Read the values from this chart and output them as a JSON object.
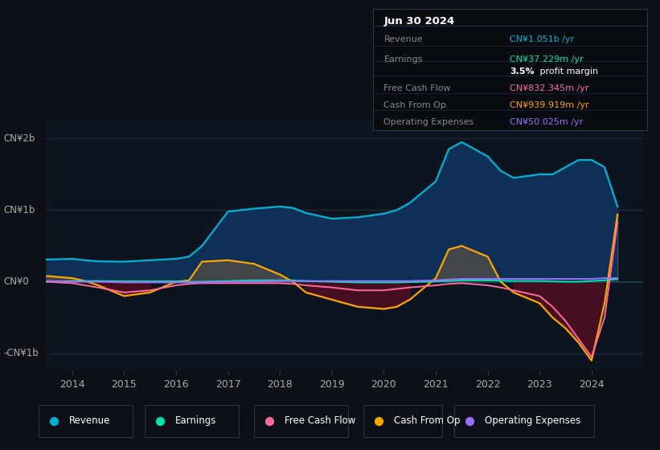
{
  "bg_color": "#0d1117",
  "chart_bg": "#0c1420",
  "ylim": [
    -1250000000.0,
    2300000000.0
  ],
  "xlim": [
    2013.5,
    2025.0
  ],
  "years": [
    2013.5,
    2014.0,
    2014.25,
    2014.5,
    2015.0,
    2015.5,
    2016.0,
    2016.25,
    2016.5,
    2017.0,
    2017.5,
    2018.0,
    2018.25,
    2018.5,
    2019.0,
    2019.5,
    2020.0,
    2020.25,
    2020.5,
    2021.0,
    2021.25,
    2021.5,
    2022.0,
    2022.25,
    2022.5,
    2023.0,
    2023.25,
    2023.5,
    2023.75,
    2024.0,
    2024.25,
    2024.5
  ],
  "revenue": [
    310000000.0,
    320000000.0,
    300000000.0,
    285000000.0,
    280000000.0,
    300000000.0,
    320000000.0,
    350000000.0,
    500000000.0,
    980000000.0,
    1020000000.0,
    1050000000.0,
    1030000000.0,
    960000000.0,
    880000000.0,
    900000000.0,
    950000000.0,
    1000000000.0,
    1100000000.0,
    1400000000.0,
    1850000000.0,
    1950000000.0,
    1750000000.0,
    1550000000.0,
    1450000000.0,
    1500000000.0,
    1500000000.0,
    1600000000.0,
    1700000000.0,
    1700000000.0,
    1600000000.0,
    1050000000.0
  ],
  "earnings": [
    0.0,
    10000000.0,
    10000000.0,
    10000000.0,
    5000000.0,
    5000000.0,
    5000000.0,
    0.0,
    0.0,
    10000000.0,
    20000000.0,
    20000000.0,
    20000000.0,
    10000000.0,
    0.0,
    -10000000.0,
    -10000000.0,
    -10000000.0,
    -5000000.0,
    5000000.0,
    10000000.0,
    20000000.0,
    20000000.0,
    15000000.0,
    10000000.0,
    10000000.0,
    5000000.0,
    0.0,
    0.0,
    10000000.0,
    20000000.0,
    37000000.0
  ],
  "free_cash_flow": [
    0.0,
    -20000000.0,
    -50000000.0,
    -80000000.0,
    -150000000.0,
    -120000000.0,
    -50000000.0,
    -30000000.0,
    -20000000.0,
    -20000000.0,
    -20000000.0,
    -20000000.0,
    -30000000.0,
    -50000000.0,
    -80000000.0,
    -120000000.0,
    -120000000.0,
    -100000000.0,
    -80000000.0,
    -50000000.0,
    -30000000.0,
    -20000000.0,
    -50000000.0,
    -80000000.0,
    -120000000.0,
    -200000000.0,
    -350000000.0,
    -550000000.0,
    -800000000.0,
    -1050000000.0,
    -500000000.0,
    832000000.0
  ],
  "cash_from_op": [
    80000000.0,
    50000000.0,
    10000000.0,
    -50000000.0,
    -200000000.0,
    -150000000.0,
    0.0,
    20000000.0,
    280000000.0,
    300000000.0,
    250000000.0,
    100000000.0,
    0.0,
    -150000000.0,
    -250000000.0,
    -350000000.0,
    -380000000.0,
    -350000000.0,
    -250000000.0,
    50000000.0,
    450000000.0,
    500000000.0,
    350000000.0,
    0.0,
    -150000000.0,
    -300000000.0,
    -500000000.0,
    -650000000.0,
    -850000000.0,
    -1100000000.0,
    -300000000.0,
    940000000.0
  ],
  "op_expenses": [
    10000000.0,
    0.0,
    0.0,
    0.0,
    -10000000.0,
    -10000000.0,
    -10000000.0,
    -10000000.0,
    -10000000.0,
    0.0,
    0.0,
    10000000.0,
    10000000.0,
    10000000.0,
    10000000.0,
    10000000.0,
    10000000.0,
    10000000.0,
    10000000.0,
    20000000.0,
    30000000.0,
    40000000.0,
    40000000.0,
    40000000.0,
    40000000.0,
    40000000.0,
    40000000.0,
    40000000.0,
    40000000.0,
    40000000.0,
    50000000.0,
    50000000.0
  ],
  "colors": {
    "revenue": "#00b4d8",
    "earnings": "#00e5b0",
    "free_cash_flow": "#ff6b9d",
    "cash_from_op": "#ffa500",
    "op_expenses": "#9d6fff"
  },
  "fill_revenue": "#0e3057",
  "fill_cash_pos": "#484848",
  "fill_cash_neg": "#4a0e22",
  "legend_items": [
    {
      "label": "Revenue",
      "color": "#00b4d8"
    },
    {
      "label": "Earnings",
      "color": "#00e5b0"
    },
    {
      "label": "Free Cash Flow",
      "color": "#ff6b9d"
    },
    {
      "label": "Cash From Op",
      "color": "#ffa500"
    },
    {
      "label": "Operating Expenses",
      "color": "#9d6fff"
    }
  ]
}
